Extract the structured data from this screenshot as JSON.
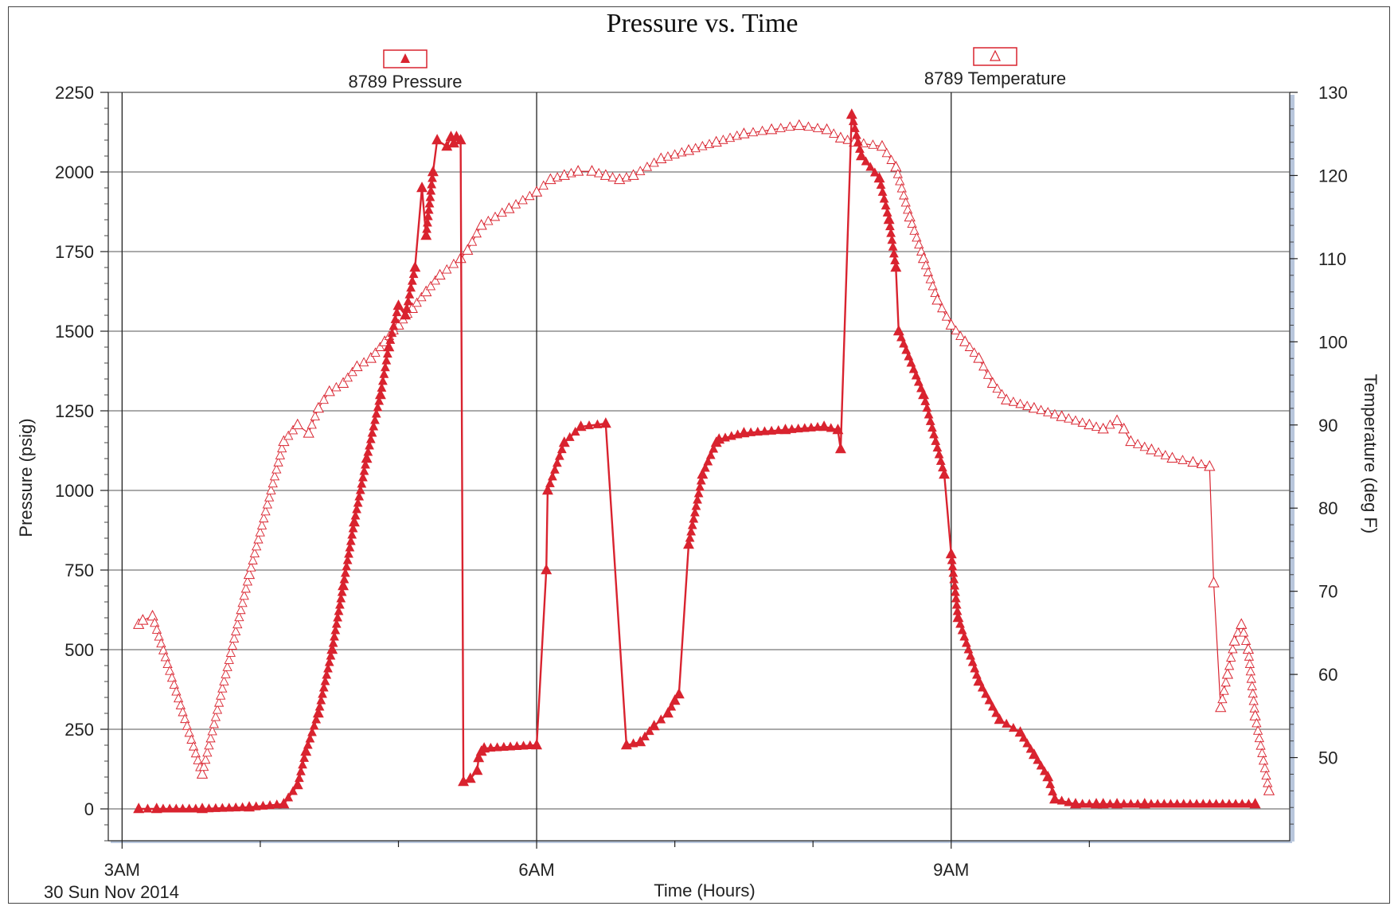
{
  "chart_data": {
    "type": "line",
    "title": "Pressure vs. Time",
    "xlabel": "Time (Hours)",
    "ylabel_left": "Pressure (psig)",
    "ylabel_right": "Temperature (deg F)",
    "date_label": "30 Sun Nov 2014",
    "x_unit": "hours after midnight",
    "xlim": [
      2.9,
      11.45
    ],
    "x_ticks": [
      {
        "value": 3,
        "label": "3AM"
      },
      {
        "value": 6,
        "label": "6AM"
      },
      {
        "value": 9,
        "label": "9AM"
      }
    ],
    "x_minor_ticks": [
      4,
      5,
      7,
      8,
      10
    ],
    "ylim_left": [
      -100,
      2250
    ],
    "y_ticks_left": [
      0,
      250,
      500,
      750,
      1000,
      1250,
      1500,
      1750,
      2000,
      2250
    ],
    "ylim_right": [
      40,
      130
    ],
    "y_ticks_right": [
      50,
      60,
      70,
      80,
      90,
      100,
      110,
      120,
      130
    ],
    "grid": true,
    "legend_position": "top",
    "series": [
      {
        "name": "8789 Pressure",
        "axis": "left",
        "marker": "filled-triangle",
        "color": "#d9232f",
        "x": [
          3.12,
          3.25,
          3.58,
          3.92,
          4.17,
          4.27,
          4.33,
          4.42,
          4.52,
          4.6,
          4.68,
          4.77,
          4.87,
          4.93,
          5.0,
          5.05,
          5.12,
          5.17,
          5.2,
          5.25,
          5.28,
          5.35,
          5.38,
          5.4,
          5.42,
          5.45,
          5.47,
          5.52,
          5.57,
          5.58,
          5.6,
          5.62,
          6.0,
          6.07,
          6.08,
          6.2,
          6.32,
          6.5,
          6.65,
          6.75,
          6.85,
          6.95,
          7.0,
          7.03,
          7.1,
          7.2,
          7.3,
          7.32,
          7.5,
          7.8,
          8.08,
          8.18,
          8.2,
          8.28,
          8.35,
          8.48,
          8.55,
          8.6,
          8.62,
          8.8,
          8.95,
          9.0,
          9.05,
          9.2,
          9.35,
          9.5,
          9.6,
          9.7,
          9.75,
          9.9,
          10.05,
          10.1,
          10.2,
          10.4,
          11.2
        ],
        "y": [
          0,
          0,
          0,
          5,
          15,
          75,
          180,
          300,
          500,
          700,
          900,
          1100,
          1300,
          1450,
          1580,
          1550,
          1700,
          1950,
          1800,
          2000,
          2100,
          2080,
          2110,
          2090,
          2110,
          2100,
          85,
          95,
          120,
          160,
          180,
          190,
          200,
          750,
          1000,
          1150,
          1200,
          1210,
          200,
          210,
          260,
          300,
          340,
          360,
          830,
          1050,
          1150,
          1160,
          1180,
          1190,
          1200,
          1190,
          1130,
          2180,
          2050,
          1980,
          1850,
          1700,
          1500,
          1300,
          1050,
          800,
          600,
          400,
          280,
          240,
          170,
          100,
          30,
          15,
          15,
          15,
          15,
          15,
          15
        ]
      },
      {
        "name": "8789 Temperature",
        "axis": "right",
        "marker": "open-triangle",
        "color": "#d9232f",
        "x": [
          3.12,
          3.15,
          3.22,
          3.58,
          3.92,
          4.17,
          4.27,
          4.35,
          4.42,
          4.5,
          4.6,
          4.7,
          4.8,
          4.9,
          5.0,
          5.1,
          5.2,
          5.3,
          5.45,
          5.5,
          5.6,
          5.8,
          6.0,
          6.1,
          6.2,
          6.3,
          6.4,
          6.5,
          6.6,
          6.7,
          6.9,
          7.1,
          7.3,
          7.5,
          7.7,
          7.9,
          8.1,
          8.2,
          8.3,
          8.5,
          8.6,
          8.7,
          8.8,
          8.9,
          9.0,
          9.1,
          9.2,
          9.3,
          9.4,
          9.6,
          9.8,
          10.0,
          10.1,
          10.2,
          10.25,
          10.3,
          10.45,
          10.6,
          10.75,
          10.87,
          10.9,
          10.95,
          11.0,
          11.05,
          11.1,
          11.15,
          11.2,
          11.3
        ],
        "y": [
          66,
          66.5,
          67,
          48,
          72,
          88,
          90,
          89,
          92,
          94,
          95,
          97,
          98,
          100,
          102,
          104,
          106,
          108,
          110,
          111,
          114,
          116,
          118,
          119.5,
          120,
          120.5,
          120.5,
          120,
          119.5,
          120,
          122,
          123,
          124,
          125,
          125.5,
          126,
          125.5,
          124.5,
          124,
          123.5,
          121,
          115,
          110,
          105,
          102,
          100,
          98,
          95,
          93,
          92,
          91,
          90,
          89.5,
          90.5,
          89.5,
          88,
          87,
          86,
          85.5,
          85,
          71,
          56,
          60,
          64,
          66,
          63,
          55,
          46
        ]
      }
    ]
  }
}
